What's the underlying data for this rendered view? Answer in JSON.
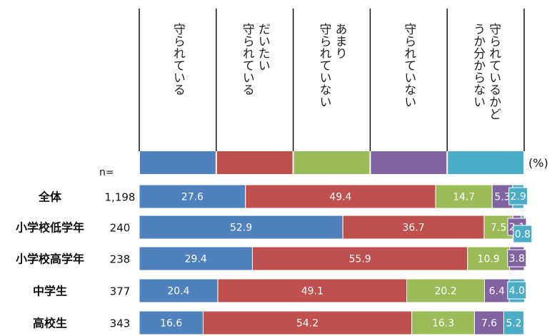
{
  "chart_data": {
    "type": "bar",
    "stacked": true,
    "orientation": "horizontal",
    "unit": "(%)",
    "n_header": "n=",
    "categories": [
      "全体",
      "小学校低学年",
      "小学校高学年",
      "中学生",
      "高校生"
    ],
    "n_values": [
      "1,198",
      "240",
      "238",
      "377",
      "343"
    ],
    "series": [
      {
        "name": "守られている",
        "lines": [
          "守られている"
        ],
        "color": "#4f81bd",
        "values": [
          27.6,
          52.9,
          29.4,
          20.4,
          16.6
        ]
      },
      {
        "name": "だいたい守られている",
        "lines": [
          "だいたい",
          "守られている"
        ],
        "color": "#c0504d",
        "values": [
          49.4,
          36.7,
          55.9,
          49.1,
          54.2
        ]
      },
      {
        "name": "あまり守られていない",
        "lines": [
          "あまり",
          "守られていない"
        ],
        "color": "#9bbb59",
        "values": [
          14.7,
          7.5,
          10.9,
          20.2,
          16.3
        ]
      },
      {
        "name": "守られていない",
        "lines": [
          "守られていない"
        ],
        "color": "#8064a2",
        "values": [
          5.3,
          2.1,
          3.8,
          6.4,
          7.6
        ]
      },
      {
        "name": "守られているかどうか分からない",
        "lines": [
          "守られているかど",
          "うか分からない"
        ],
        "color": "#4bacc6",
        "values": [
          2.9,
          0.8,
          0.0,
          4.0,
          5.2
        ]
      }
    ],
    "value_labels": [
      [
        "27.6",
        "49.4",
        "14.7",
        "5.3",
        "2.9"
      ],
      [
        "52.9",
        "36.7",
        "7.5",
        "2.1",
        "0.8"
      ],
      [
        "29.4",
        "55.9",
        "10.9",
        "3.8",
        ""
      ],
      [
        "20.4",
        "49.1",
        "20.2",
        "6.4",
        "4.0"
      ],
      [
        "16.6",
        "54.2",
        "16.3",
        "7.6",
        "5.2"
      ]
    ],
    "xlim": [
      0,
      100
    ]
  }
}
